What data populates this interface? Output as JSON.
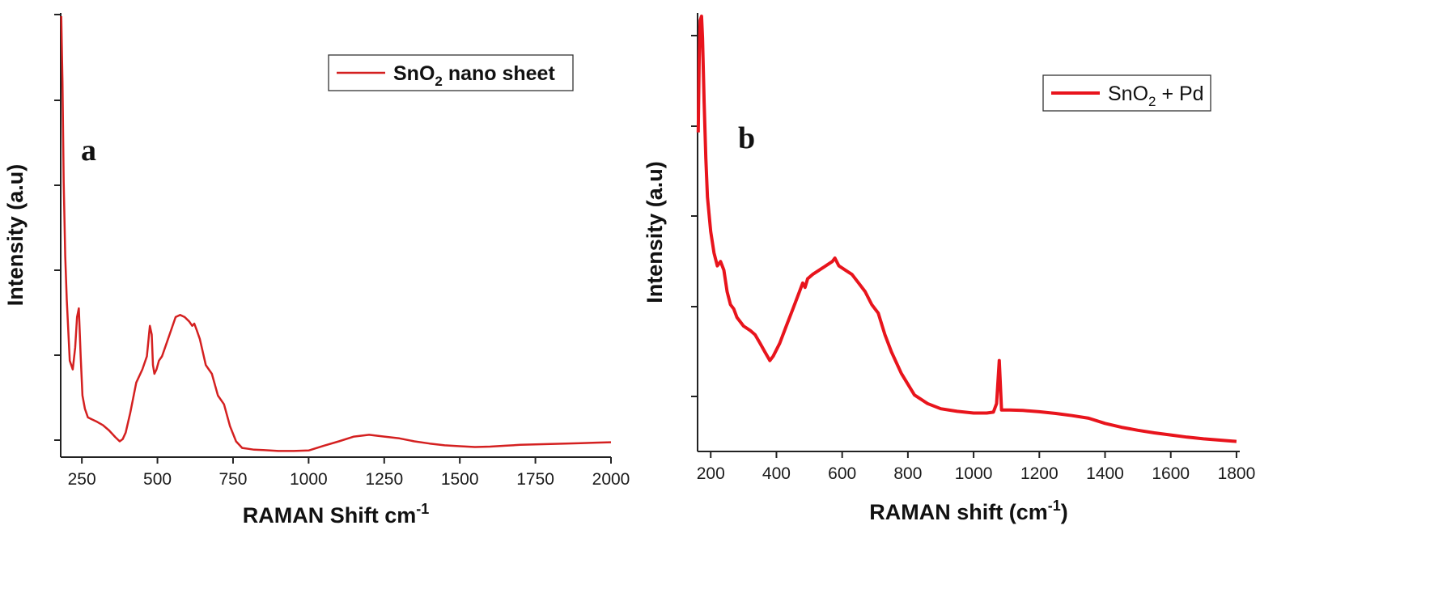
{
  "chart_data": [
    {
      "type": "line",
      "panel_label": "a",
      "xlabel": "RAMAN Shift cm",
      "xlabel_sup": "-1",
      "ylabel": "Intensity (a.u)",
      "xlim": [
        180,
        2000
      ],
      "ylim": [
        0,
        100
      ],
      "xticks": [
        250,
        500,
        750,
        1000,
        1250,
        1500,
        1750,
        2000
      ],
      "yticks_labeled": false,
      "grid": false,
      "legend_position": "top-right",
      "legend_bold": true,
      "series": [
        {
          "name_base": "SnO",
          "name_sub": "2",
          "name_rest": " nano sheet",
          "color": "#d42020",
          "x": [
            182,
            186,
            190,
            195,
            200,
            210,
            220,
            228,
            234,
            240,
            246,
            252,
            260,
            270,
            285,
            300,
            320,
            340,
            360,
            375,
            385,
            395,
            410,
            430,
            450,
            465,
            475,
            481,
            485,
            490,
            497,
            505,
            515,
            530,
            545,
            560,
            575,
            590,
            605,
            615,
            622,
            630,
            640,
            660,
            680,
            700,
            720,
            740,
            760,
            780,
            800,
            820,
            850,
            900,
            950,
            1000,
            1050,
            1100,
            1150,
            1200,
            1250,
            1300,
            1350,
            1400,
            1450,
            1500,
            1550,
            1600,
            1650,
            1700,
            1750,
            1800,
            1850,
            1900,
            1950,
            2000
          ],
          "y": [
            100,
            85,
            62,
            45,
            35,
            21,
            19,
            24,
            31,
            33,
            22,
            13,
            10,
            8,
            7.5,
            7,
            6.2,
            5,
            3.5,
            2.5,
            3,
            4.5,
            9,
            16,
            19,
            22,
            29,
            27,
            20,
            18,
            19,
            21,
            22,
            25,
            28,
            31,
            31.5,
            31,
            30,
            29,
            29.5,
            28,
            26,
            20,
            18,
            13,
            11,
            6,
            2.5,
            1,
            0.8,
            0.6,
            0.5,
            0.3,
            0.3,
            0.4,
            1.5,
            2.5,
            3.6,
            4,
            3.6,
            3.2,
            2.5,
            2,
            1.6,
            1.4,
            1.2,
            1.3,
            1.5,
            1.7,
            1.8,
            1.9,
            2,
            2.1,
            2.2,
            2.3
          ]
        }
      ]
    },
    {
      "type": "line",
      "panel_label": "b",
      "xlabel": "RAMAN shift (cm",
      "xlabel_sup": "-1",
      "xlabel_tail": ")",
      "ylabel": "Intensity (a.u)",
      "xlim": [
        160,
        1810
      ],
      "ylim": [
        0,
        100
      ],
      "xticks": [
        200,
        400,
        600,
        800,
        1000,
        1200,
        1400,
        1600,
        1800
      ],
      "yticks_labeled": false,
      "grid": false,
      "legend_position": "top-right",
      "legend_bold": false,
      "series": [
        {
          "name_base": "SnO",
          "name_sub": "2",
          "name_rest": " + Pd",
          "color": "#e8141c",
          "x": [
            162,
            165,
            168,
            172,
            175,
            180,
            185,
            190,
            200,
            210,
            220,
            230,
            240,
            250,
            260,
            270,
            280,
            300,
            320,
            335,
            350,
            365,
            380,
            390,
            410,
            430,
            450,
            470,
            480,
            487,
            495,
            510,
            530,
            550,
            570,
            578,
            590,
            610,
            630,
            650,
            670,
            690,
            710,
            730,
            750,
            780,
            820,
            860,
            900,
            950,
            1000,
            1040,
            1060,
            1070,
            1078,
            1085,
            1095,
            1110,
            1150,
            1200,
            1250,
            1300,
            1350,
            1400,
            1450,
            1500,
            1550,
            1600,
            1650,
            1700,
            1750,
            1800
          ],
          "y": [
            73,
            90,
            99,
            100,
            95,
            80,
            67,
            58,
            50,
            45,
            42,
            43,
            41,
            36,
            33,
            32,
            30,
            28,
            27,
            26,
            24,
            22,
            20,
            21,
            24,
            28,
            32,
            36,
            38,
            37,
            39,
            40,
            41,
            42,
            43,
            43.8,
            42,
            41,
            40,
            38,
            36,
            33,
            31,
            26,
            22,
            17,
            12,
            10,
            8.8,
            8.2,
            7.8,
            7.8,
            8,
            10,
            20,
            8.5,
            8.5,
            8.5,
            8.4,
            8.1,
            7.7,
            7.2,
            6.6,
            5.4,
            4.5,
            3.8,
            3.2,
            2.7,
            2.2,
            1.8,
            1.5,
            1.2
          ]
        }
      ]
    }
  ]
}
